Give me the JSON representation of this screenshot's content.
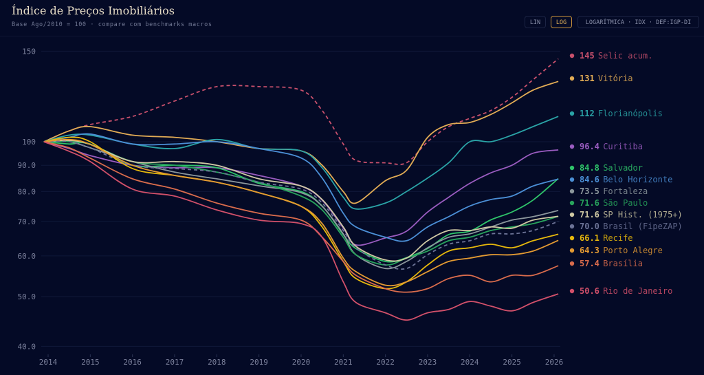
{
  "header": {
    "title": "Índice de Preços Imobiliários",
    "subtitle": "Base Ago/2010 = 100 · compare com benchmarks macros",
    "buttons": {
      "lin": "LIN",
      "log": "LOG",
      "mode": "LOGARÍTMICA · IDX · DEF:IGP-DI"
    }
  },
  "chart_data": {
    "type": "line",
    "title": "Índice de Preços Imobiliários",
    "scale": "log",
    "ylim": [
      38,
      158
    ],
    "xlim": [
      2013.8,
      2026.3
    ],
    "yticks": [
      {
        "v": 150,
        "label": "150"
      },
      {
        "v": 100,
        "label": "100"
      },
      {
        "v": 90,
        "label": "90.0"
      },
      {
        "v": 80,
        "label": "80.0"
      },
      {
        "v": 70,
        "label": "70.0"
      },
      {
        "v": 60,
        "label": "60.0"
      },
      {
        "v": 50,
        "label": "50.0"
      },
      {
        "v": 40,
        "label": "40.0"
      }
    ],
    "xticks": [
      "2014",
      "2015",
      "2016",
      "2017",
      "2018",
      "2019",
      "2020",
      "2021",
      "2022",
      "2023",
      "2024",
      "2025",
      "2026"
    ],
    "x": [
      2013.9,
      2014.5,
      2015,
      2016,
      2017,
      2018,
      2019,
      2020,
      2020.5,
      2021,
      2021.3,
      2022,
      2022.5,
      2023,
      2023.5,
      2024,
      2024.5,
      2025,
      2025.5,
      2026.1
    ],
    "series": [
      {
        "name": "Selic acum.",
        "last": "145",
        "color": "#c8506c",
        "dashed": true,
        "values": [
          100,
          105,
          108,
          112,
          120,
          128,
          128,
          126,
          115,
          99,
          92,
          91,
          91,
          100,
          107,
          111,
          115,
          122,
          132,
          145
        ]
      },
      {
        "name": "Vitória",
        "last": "131",
        "color": "#e2ac55",
        "values": [
          100,
          105,
          107,
          103,
          102,
          100,
          97,
          96,
          90,
          80,
          76,
          84,
          88,
          102,
          108,
          109,
          113,
          119,
          126,
          131
        ]
      },
      {
        "name": "Florianópolis",
        "last": "112",
        "color": "#2aa3a6",
        "values": [
          100,
          103,
          103,
          99,
          97,
          101,
          97,
          96,
          89,
          78,
          74,
          76,
          80,
          85,
          91,
          100,
          100,
          103,
          107,
          112
        ]
      },
      {
        "name": "Curitiba",
        "last": "96.4",
        "color": "#9a5cc0",
        "values": [
          100,
          97,
          94,
          90,
          89,
          89,
          86,
          82,
          77,
          68,
          63,
          65,
          67,
          73,
          78,
          83,
          87,
          90,
          95,
          96.4
        ]
      },
      {
        "name": "Salvador",
        "last": "84.8",
        "color": "#2fc46a",
        "values": [
          100,
          99,
          99,
          90,
          90,
          89,
          83,
          80,
          75,
          66,
          62,
          58.5,
          59.5,
          62,
          66,
          67,
          70.5,
          73,
          77,
          84.8
        ]
      },
      {
        "name": "Belo Horizonte",
        "last": "84.6",
        "color": "#4b8fd6",
        "values": [
          100,
          102,
          103.5,
          99,
          99,
          100,
          97,
          93,
          85,
          72.6,
          68.3,
          65.2,
          64.2,
          68.3,
          71.5,
          75,
          77.2,
          78.4,
          82,
          84.6
        ]
      },
      {
        "name": "Fortaleza",
        "last": "73.5",
        "color": "#8c979c",
        "values": [
          100,
          100,
          97.3,
          91.5,
          87.3,
          84.7,
          82.1,
          79.6,
          74.9,
          66.2,
          60.3,
          56.7,
          58.5,
          62.2,
          65.2,
          66.2,
          68.3,
          70.4,
          71.5,
          73.5
        ]
      },
      {
        "name": "São Paulo",
        "last": "71.6",
        "color": "#28a45c",
        "values": [
          100,
          100,
          98.8,
          91.5,
          90,
          87.3,
          83.4,
          78.4,
          73.7,
          65.2,
          60.3,
          57.6,
          59.4,
          61.3,
          64.2,
          65.2,
          67.2,
          68.3,
          69.3,
          71.6
        ]
      },
      {
        "name": "SP Hist. (1975+)",
        "last": "71.6",
        "color": "#cfc9a4",
        "values": [
          100,
          100.6,
          98.8,
          91.5,
          91.5,
          90,
          84.7,
          82,
          77.2,
          68.3,
          62.6,
          58.9,
          59.4,
          64.2,
          67.2,
          67.2,
          68.3,
          67.9,
          70.4,
          71.6
        ]
      },
      {
        "name": "Brasil (FipeZAP)",
        "last": "70.0",
        "color": "#6c7396",
        "dashed": true,
        "values": [
          100,
          100,
          97.3,
          90,
          88.7,
          87.3,
          83.4,
          80.9,
          76,
          67.2,
          62.2,
          57.6,
          56.7,
          60.3,
          63.2,
          64.2,
          66.2,
          66.2,
          67.2,
          70
        ]
      },
      {
        "name": "Recife",
        "last": "66.1",
        "color": "#e6b80c",
        "values": [
          100,
          102,
          100,
          88.7,
          86,
          83.4,
          79.6,
          74.9,
          68.3,
          58.5,
          54.2,
          51.8,
          53.4,
          57.6,
          61.3,
          62.2,
          63.2,
          62.2,
          64.2,
          66.1
        ]
      },
      {
        "name": "Porto Alegre",
        "last": "64.3",
        "color": "#e39a32",
        "values": [
          100,
          101,
          98.8,
          90,
          86,
          83.4,
          79.6,
          74.9,
          69.3,
          59.4,
          55.9,
          52.6,
          53.4,
          55.9,
          58.5,
          59.4,
          60.3,
          60.3,
          61.3,
          64.3
        ]
      },
      {
        "name": "Brasília",
        "last": "57.4",
        "color": "#da6c4c",
        "values": [
          100,
          97.3,
          92.9,
          84.7,
          80.9,
          76,
          72.6,
          70.4,
          65.2,
          58.5,
          55,
          51.8,
          51,
          51.8,
          54.2,
          55,
          53.4,
          55,
          55,
          57.4
        ]
      },
      {
        "name": "Rio de Janeiro",
        "last": "50.6",
        "color": "#d2506a",
        "values": [
          100,
          95.8,
          91.5,
          80.9,
          78.4,
          73.7,
          70.4,
          69.3,
          65.2,
          53.4,
          48.7,
          46.5,
          45,
          46.5,
          47.2,
          48.9,
          47.9,
          46.9,
          48.7,
          50.6
        ]
      }
    ]
  }
}
